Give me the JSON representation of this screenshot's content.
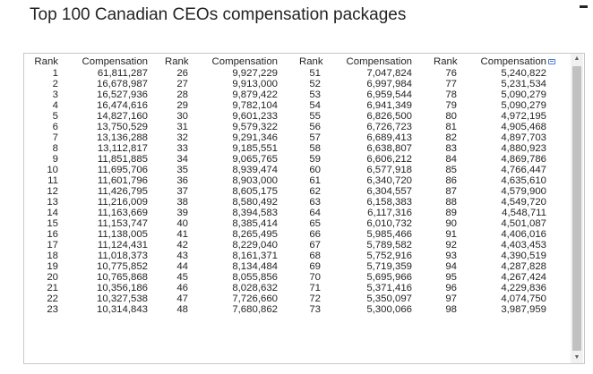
{
  "title": "Top 100 Canadian CEOs compensation packages",
  "columns": {
    "rank": "Rank",
    "compensation": "Compensation"
  },
  "icons": {
    "export": "export-icon",
    "scroll_up": "chevron-up-icon",
    "scroll_down": "chevron-down-icon",
    "menu": "menu-icon"
  },
  "chart_data": {
    "type": "table",
    "title": "Top 100 Canadian CEOs compensation packages",
    "groups": [
      {
        "ranks": [
          "1",
          "2",
          "3",
          "4",
          "5",
          "6",
          "7",
          "8",
          "9",
          "10",
          "11",
          "12",
          "13",
          "14",
          "15",
          "16",
          "17",
          "18",
          "19",
          "20",
          "21",
          "22",
          "23"
        ],
        "compensation": [
          "61,811,287",
          "16,678,987",
          "16,527,936",
          "16,474,616",
          "14,827,160",
          "13,750,529",
          "13,136,288",
          "13,112,817",
          "11,851,885",
          "11,695,706",
          "11,601,796",
          "11,426,795",
          "11,216,009",
          "11,163,669",
          "11,153,747",
          "11,138,005",
          "11,124,431",
          "11,018,373",
          "10,775,852",
          "10,765,868",
          "10,356,186",
          "10,327,538",
          "10,314,843"
        ]
      },
      {
        "ranks": [
          "26",
          "27",
          "28",
          "29",
          "30",
          "31",
          "32",
          "33",
          "34",
          "35",
          "36",
          "37",
          "38",
          "39",
          "40",
          "41",
          "42",
          "43",
          "44",
          "45",
          "46",
          "47",
          "48"
        ],
        "compensation": [
          "9,927,229",
          "9,913,000",
          "9,879,422",
          "9,782,104",
          "9,601,233",
          "9,579,322",
          "9,291,346",
          "9,185,551",
          "9,065,765",
          "8,939,474",
          "8,903,000",
          "8,605,175",
          "8,580,492",
          "8,394,583",
          "8,385,414",
          "8,265,495",
          "8,229,040",
          "8,161,371",
          "8,134,484",
          "8,055,856",
          "8,028,632",
          "7,726,660",
          "7,680,862"
        ]
      },
      {
        "ranks": [
          "51",
          "52",
          "53",
          "54",
          "55",
          "56",
          "57",
          "58",
          "59",
          "60",
          "61",
          "62",
          "63",
          "64",
          "65",
          "66",
          "67",
          "68",
          "69",
          "70",
          "71",
          "72",
          "73"
        ],
        "compensation": [
          "7,047,824",
          "6,997,984",
          "6,959,544",
          "6,941,349",
          "6,826,500",
          "6,726,723",
          "6,689,413",
          "6,638,807",
          "6,606,212",
          "6,577,918",
          "6,340,720",
          "6,304,557",
          "6,158,383",
          "6,117,316",
          "6,010,732",
          "5,985,466",
          "5,789,582",
          "5,752,916",
          "5,719,359",
          "5,695,966",
          "5,371,416",
          "5,350,097",
          "5,300,066"
        ]
      },
      {
        "ranks": [
          "76",
          "77",
          "78",
          "79",
          "80",
          "81",
          "82",
          "83",
          "84",
          "85",
          "86",
          "87",
          "88",
          "89",
          "90",
          "91",
          "92",
          "93",
          "94",
          "95",
          "96",
          "97",
          "98"
        ],
        "compensation": [
          "5,240,822",
          "5,231,534",
          "5,090,279",
          "5,090,279",
          "4,972,195",
          "4,905,468",
          "4,897,703",
          "4,880,923",
          "4,869,786",
          "4,766,447",
          "4,635,610",
          "4,579,900",
          "4,549,720",
          "4,548,711",
          "4,501,087",
          "4,406,016",
          "4,403,453",
          "4,390,519",
          "4,287,828",
          "4,267,424",
          "4,229,836",
          "4,074,750",
          "3,987,959"
        ]
      }
    ]
  }
}
